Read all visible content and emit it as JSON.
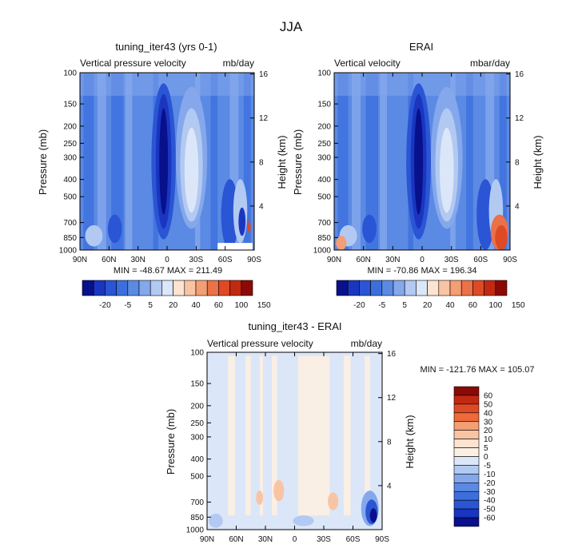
{
  "page_title": "JJA",
  "chart_data": [
    {
      "type": "heatmap",
      "title": "tuning_iter43 (yrs 0-1)",
      "subtitle_left": "Vertical pressure velocity",
      "subtitle_right": "mb/day",
      "ylabel": "Pressure (mb)",
      "ylabel_right": "Height (km)",
      "x_ticks": [
        "90N",
        "60N",
        "30N",
        "0",
        "30S",
        "60S",
        "90S"
      ],
      "y_ticks": [
        "100",
        "150",
        "200",
        "250",
        "300",
        "400",
        "500",
        "700",
        "850",
        "1000"
      ],
      "y2_ticks": [
        "16",
        "12",
        "8",
        "4"
      ],
      "min": -48.67,
      "max": 211.49,
      "stats_text": "MIN = -48.67    MAX = 211.49",
      "colorbar_labels": [
        "-20",
        "-5",
        "5",
        "20",
        "40",
        "60",
        "100",
        "150"
      ]
    },
    {
      "type": "heatmap",
      "title": "ERAI",
      "subtitle_left": "Vertical velocity",
      "subtitle_right": "mbar/day",
      "ylabel": "Pressure (mb)",
      "ylabel_right": "Height (km)",
      "x_ticks": [
        "90N",
        "60N",
        "30N",
        "0",
        "30S",
        "60S",
        "90S"
      ],
      "y_ticks": [
        "100",
        "150",
        "200",
        "250",
        "300",
        "400",
        "500",
        "700",
        "850",
        "1000"
      ],
      "y2_ticks": [
        "16",
        "12",
        "8",
        "4"
      ],
      "min": -70.86,
      "max": 196.34,
      "stats_text": "MIN = -70.86    MAX = 196.34",
      "colorbar_labels": [
        "-20",
        "-5",
        "5",
        "20",
        "40",
        "60",
        "100",
        "150"
      ]
    },
    {
      "type": "heatmap",
      "title": "tuning_iter43 - ERAI",
      "subtitle_left": "Vertical pressure velocity",
      "subtitle_right": "mb/day",
      "ylabel": "Pressure (mb)",
      "ylabel_right": "Height (km)",
      "x_ticks": [
        "90N",
        "60N",
        "30N",
        "0",
        "30S",
        "60S",
        "90S"
      ],
      "y_ticks": [
        "100",
        "150",
        "200",
        "250",
        "300",
        "400",
        "500",
        "700",
        "850",
        "1000"
      ],
      "y2_ticks": [
        "16",
        "12",
        "8",
        "4"
      ],
      "min": -121.76,
      "max": 105.07,
      "stats_text": "MIN = -121.76    MAX = 105.07",
      "colorbar_labels": [
        "60",
        "50",
        "40",
        "30",
        "20",
        "10",
        "5",
        "0",
        "-5",
        "-10",
        "-20",
        "-30",
        "-40",
        "-50",
        "-60"
      ]
    }
  ],
  "colors": {
    "abs_scale": [
      "#08108c",
      "#1a36c0",
      "#2a55d4",
      "#3c6fdd",
      "#5b8ae4",
      "#85a8ec",
      "#b2c9f2",
      "#dbe6f8",
      "#fde3d0",
      "#f9c4a4",
      "#f49e74",
      "#ea7148",
      "#dd4a25",
      "#c22912",
      "#8c0a05"
    ],
    "diff_scale": [
      "#8c0a05",
      "#c22912",
      "#dd4a25",
      "#ee6a3a",
      "#f49e74",
      "#f9c4a4",
      "#fde3d0",
      "#fcefe3",
      "#dbe6f8",
      "#b2c9f2",
      "#85a8ec",
      "#5b8ae4",
      "#3c6fdd",
      "#2a55d4",
      "#1a36c0",
      "#08108c"
    ]
  }
}
